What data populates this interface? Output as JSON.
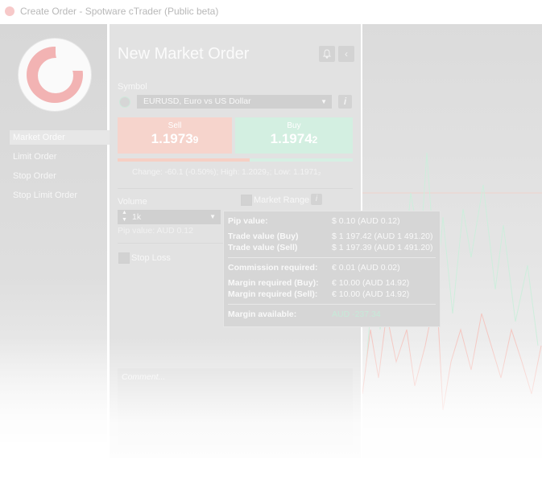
{
  "window": {
    "title": "Create Order - Spotware cTrader (Public beta)"
  },
  "nav": {
    "items": [
      {
        "label": "Market Order",
        "active": true
      },
      {
        "label": "Limit Order",
        "active": false
      },
      {
        "label": "Stop Order",
        "active": false
      },
      {
        "label": "Stop Limit Order",
        "active": false
      }
    ]
  },
  "form": {
    "heading": "New Market Order",
    "bell_icon": "bell-icon",
    "back_icon": "chevron-left-icon",
    "symbol_label": "Symbol",
    "symbol_value": "EURUSD, Euro vs US Dollar",
    "symbol_info": "i",
    "sell": {
      "label": "Sell",
      "price": "1.1973",
      "pip": "9"
    },
    "buy": {
      "label": "Buy",
      "price": "1.1974",
      "pip": "2"
    },
    "stats": "Change: -60.1 (-0.50%); High: 1.2029₂; Low: 1.1971₂",
    "volume_label": "Volume",
    "market_range_label": "Market Range",
    "market_range_info": "i",
    "volume_value": "1k",
    "pip_value_text": "Pip value: AUD 0.12",
    "stop_loss_label": "Stop Loss",
    "comment_placeholder": "Comment..."
  },
  "tooltip": {
    "rows": [
      {
        "key": "Pip value:",
        "value": "$ 0.10 (AUD 0.12)"
      },
      {
        "key": "Trade value (Buy)",
        "value": "$ 1 197.42 (AUD 1 491.20)"
      },
      {
        "key": "Trade value (Sell)",
        "value": "$ 1 197.39 (AUD 1 491.20)"
      },
      {
        "key": "Commission required:",
        "value": "€ 0.01 (AUD 0.02)"
      },
      {
        "key": "Margin required (Buy):",
        "value": "€ 10.00 (AUD 14.92)"
      },
      {
        "key": "Margin required (Sell):",
        "value": "€ 10.00 (AUD 14.92)"
      },
      {
        "key": "Margin available:",
        "value": "AUD -237.34"
      }
    ]
  },
  "colors": {
    "sell": "#f6d4cc",
    "buy": "#d3efe1",
    "chart_red": "#f4c6c0",
    "chart_green": "#cdeedc"
  }
}
